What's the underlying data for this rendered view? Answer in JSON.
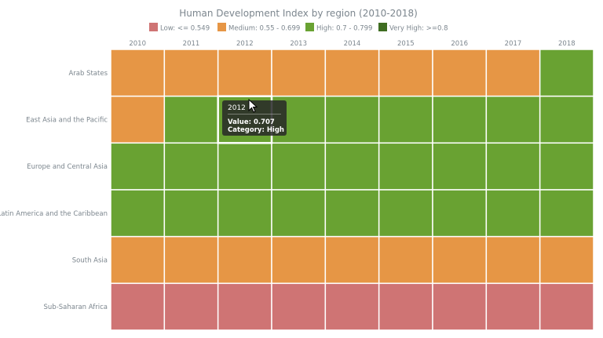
{
  "chart_data": {
    "type": "heatmap",
    "title": "Human Development Index by region (2010-2018)",
    "x": [
      "2010",
      "2011",
      "2012",
      "2013",
      "2014",
      "2015",
      "2016",
      "2017",
      "2018"
    ],
    "y": [
      "Arab States",
      "East Asia and the Pacific",
      "Europe and Central Asia",
      "Latin America and the Caribbean",
      "South Asia",
      "Sub-Saharan Africa"
    ],
    "legend": {
      "placement": "top",
      "items": [
        {
          "label": "Low: <= 0.549",
          "color": "#cf7474"
        },
        {
          "label": "Medium: 0.55 - 0.699",
          "color": "#e69645"
        },
        {
          "label": "High: 0.7 - 0.799",
          "color": "#69a232"
        },
        {
          "label": "Very High: >=0.8",
          "color": "#3f6d21"
        }
      ]
    },
    "categories_matrix": [
      [
        "Medium",
        "Medium",
        "Medium",
        "Medium",
        "Medium",
        "Medium",
        "Medium",
        "Medium",
        "High"
      ],
      [
        "Medium",
        "High",
        "High",
        "High",
        "High",
        "High",
        "High",
        "High",
        "High"
      ],
      [
        "High",
        "High",
        "High",
        "High",
        "High",
        "High",
        "High",
        "High",
        "High"
      ],
      [
        "High",
        "High",
        "High",
        "High",
        "High",
        "High",
        "High",
        "High",
        "High"
      ],
      [
        "Medium",
        "Medium",
        "Medium",
        "Medium",
        "Medium",
        "Medium",
        "Medium",
        "Medium",
        "Medium"
      ],
      [
        "Low",
        "Low",
        "Low",
        "Low",
        "Low",
        "Low",
        "Low",
        "Low",
        "Low"
      ]
    ],
    "category_colors": {
      "Low": "#cf7474",
      "Medium": "#e69645",
      "High": "#69a232",
      "Very High": "#3f6d21"
    },
    "highlighted_cell": {
      "row": 1,
      "col": 2
    }
  },
  "tooltip": {
    "title": "2012",
    "value_line": "Value: 0.707",
    "category_line": "Category: High"
  }
}
